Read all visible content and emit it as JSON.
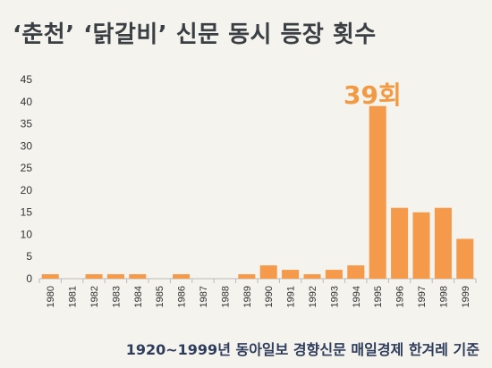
{
  "title": "‘춘천’ ‘닭갈비’ 신문 동시 등장 횟수",
  "callout": "39회",
  "source": "1920~1999년 동아일보 경향신문 매일경제 한겨레 기준",
  "colors": {
    "bar": "#f5994a",
    "text": "#3a3f44",
    "accent": "#f29a43",
    "source": "#2f3d5c",
    "background": "#f5f3ee"
  },
  "chart_data": {
    "type": "bar",
    "categories": [
      "1980",
      "1981",
      "1982",
      "1983",
      "1984",
      "1985",
      "1986",
      "1987",
      "1988",
      "1989",
      "1990",
      "1991",
      "1992",
      "1993",
      "1994",
      "1995",
      "1996",
      "1997",
      "1998",
      "1999"
    ],
    "values": [
      1,
      0,
      1,
      1,
      1,
      0,
      1,
      0,
      0,
      1,
      3,
      2,
      1,
      2,
      3,
      39,
      16,
      15,
      16,
      9
    ],
    "ylim": [
      0,
      45
    ],
    "yticks": [
      0,
      5,
      10,
      15,
      20,
      25,
      30,
      35,
      40,
      45
    ],
    "grid": false,
    "legend": "none"
  }
}
